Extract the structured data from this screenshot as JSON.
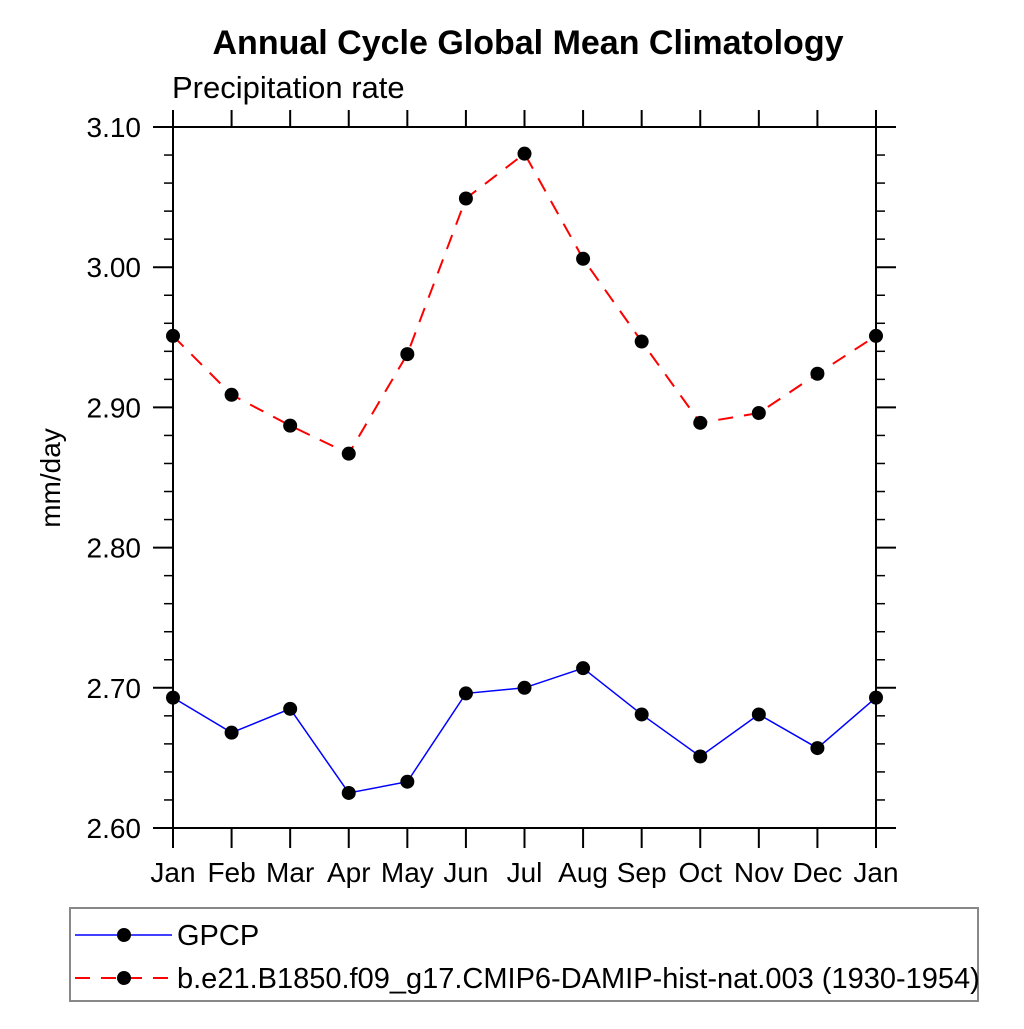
{
  "chart_data": {
    "type": "line",
    "title": "Annual Cycle Global Mean Climatology",
    "subtitle": "Precipitation rate",
    "xlabel": "",
    "ylabel": "mm/day",
    "categories": [
      "Jan",
      "Feb",
      "Mar",
      "Apr",
      "May",
      "Jun",
      "Jul",
      "Aug",
      "Sep",
      "Oct",
      "Nov",
      "Dec",
      "Jan"
    ],
    "ylim": [
      2.6,
      3.1
    ],
    "y_major_ticks": [
      2.6,
      2.7,
      2.8,
      2.9,
      3.0,
      3.1
    ],
    "y_tick_labels": [
      "2.60",
      "2.70",
      "2.80",
      "2.90",
      "3.00",
      "3.10"
    ],
    "y_minor_step": 0.02,
    "grid": false,
    "legend_position": "bottom-left",
    "background_color": "#ffffff",
    "axis_color": "#000000",
    "marker": "filled-circle",
    "marker_color": "#000000",
    "series": [
      {
        "name": "GPCP",
        "color": "#0000ff",
        "line_style": "solid",
        "values": [
          2.693,
          2.668,
          2.685,
          2.625,
          2.633,
          2.696,
          2.7,
          2.714,
          2.681,
          2.651,
          2.681,
          2.657,
          2.693
        ]
      },
      {
        "name": "b.e21.B1850.f09_g17.CMIP6-DAMIP-hist-nat.003 (1930-1954)",
        "color": "#ff0000",
        "line_style": "dashed",
        "values": [
          2.951,
          2.909,
          2.887,
          2.867,
          2.938,
          3.049,
          3.081,
          3.006,
          2.947,
          2.889,
          2.896,
          2.924,
          2.951
        ]
      }
    ]
  }
}
